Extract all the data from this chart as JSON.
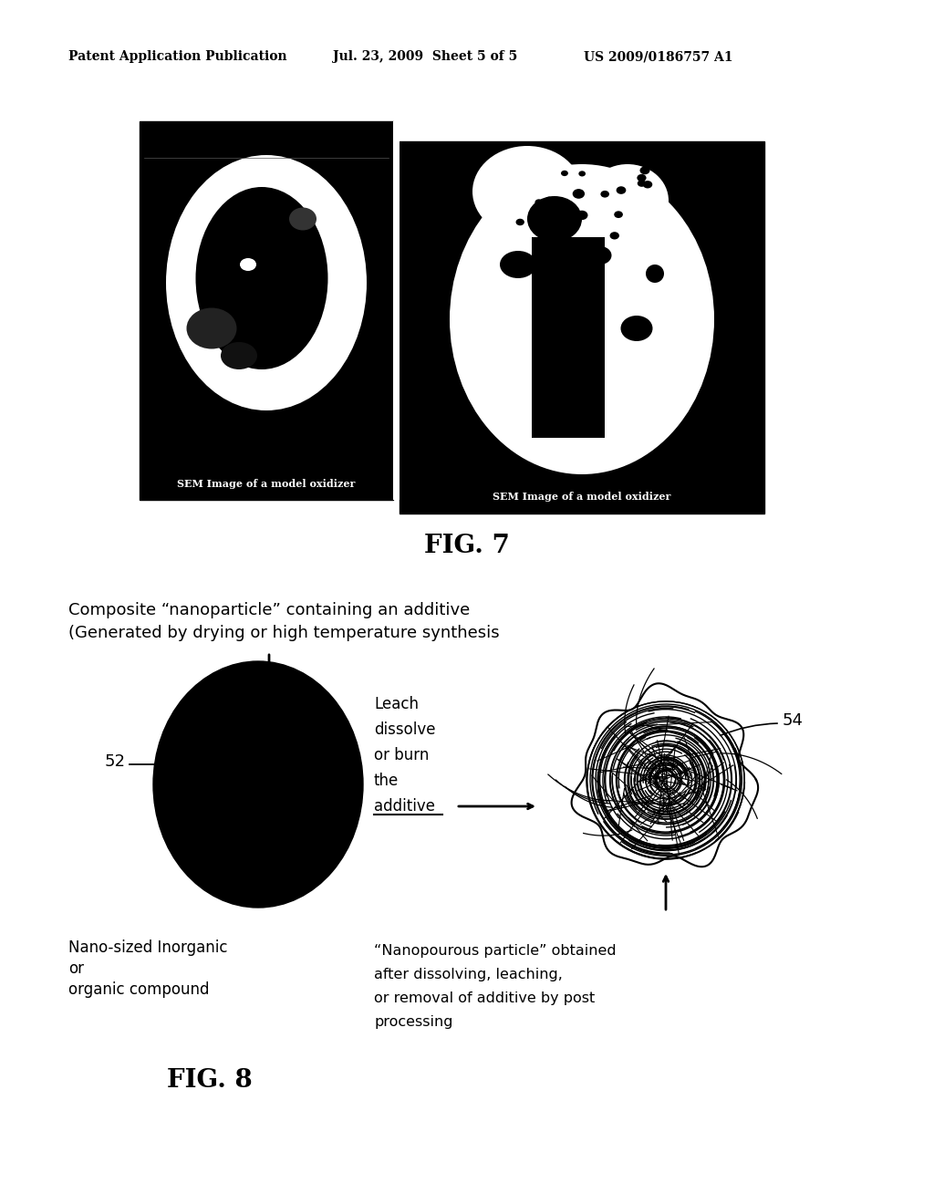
{
  "background_color": "#ffffff",
  "header_left": "Patent Application Publication",
  "header_mid": "Jul. 23, 2009  Sheet 5 of 5",
  "header_right": "US 2009/0186757 A1",
  "fig7_label": "FIG. 7",
  "fig8_label": "FIG. 8",
  "sem_caption": "SEM Image of a model oxidizer",
  "fig8_title_line1": "Composite “nanoparticle” containing an additive",
  "fig8_title_line2": "(Generated by drying or high temperature synthesis",
  "leach_text_lines": [
    "Leach",
    "dissolve",
    "or burn",
    "the",
    "additive"
  ],
  "label_52": "52",
  "label_54": "54",
  "nano_label_lines": [
    "Nano-sized Inorganic",
    "or",
    "organic compound"
  ],
  "nanoporous_label_lines": [
    "“Nanopourous particle” obtained",
    "after dissolving, leaching,",
    "or removal of additive by post",
    "processing"
  ]
}
